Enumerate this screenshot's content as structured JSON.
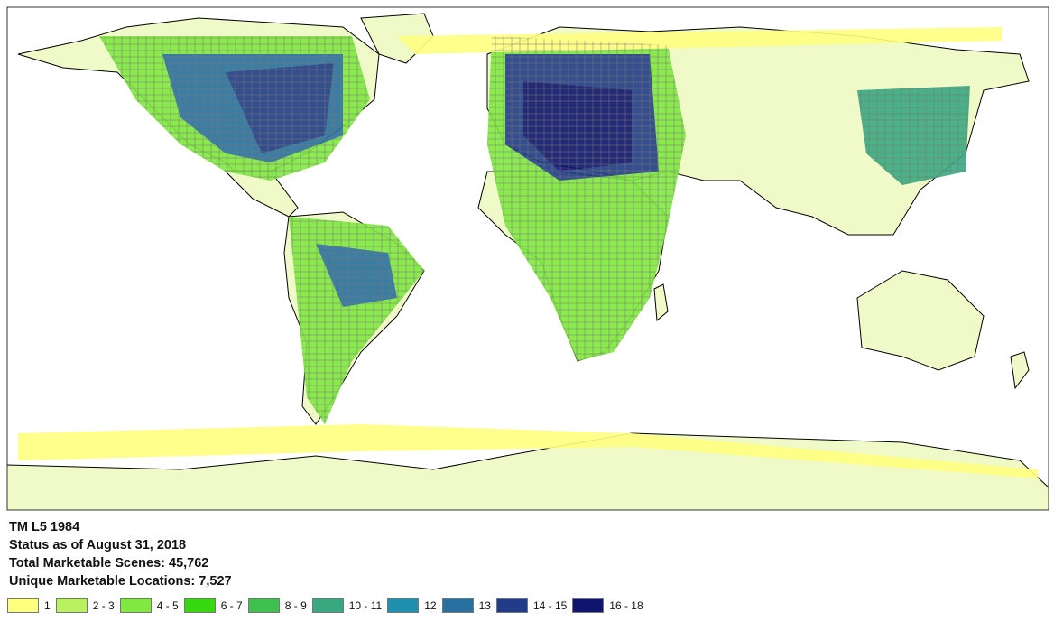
{
  "info": {
    "title": "TM L5 1984",
    "status": "Status as of August 31, 2018",
    "total_scenes": "Total Marketable Scenes:  45,762",
    "unique_locations": "Unique Marketable Locations:  7,527"
  },
  "legend": [
    {
      "label": "1",
      "color": "#ffff80"
    },
    {
      "label": "2 - 3",
      "color": "#b8f060"
    },
    {
      "label": "4 - 5",
      "color": "#80e840"
    },
    {
      "label": "6 - 7",
      "color": "#38d810"
    },
    {
      "label": "8 - 9",
      "color": "#40c050"
    },
    {
      "label": "10 - 11",
      "color": "#38a880"
    },
    {
      "label": "12",
      "color": "#2090b0"
    },
    {
      "label": "13",
      "color": "#2870a0"
    },
    {
      "label": "14 - 15",
      "color": "#203c88"
    },
    {
      "label": "16 - 18",
      "color": "#10146e"
    }
  ],
  "colors": {
    "land": "#effac8",
    "outline": "#000000"
  }
}
